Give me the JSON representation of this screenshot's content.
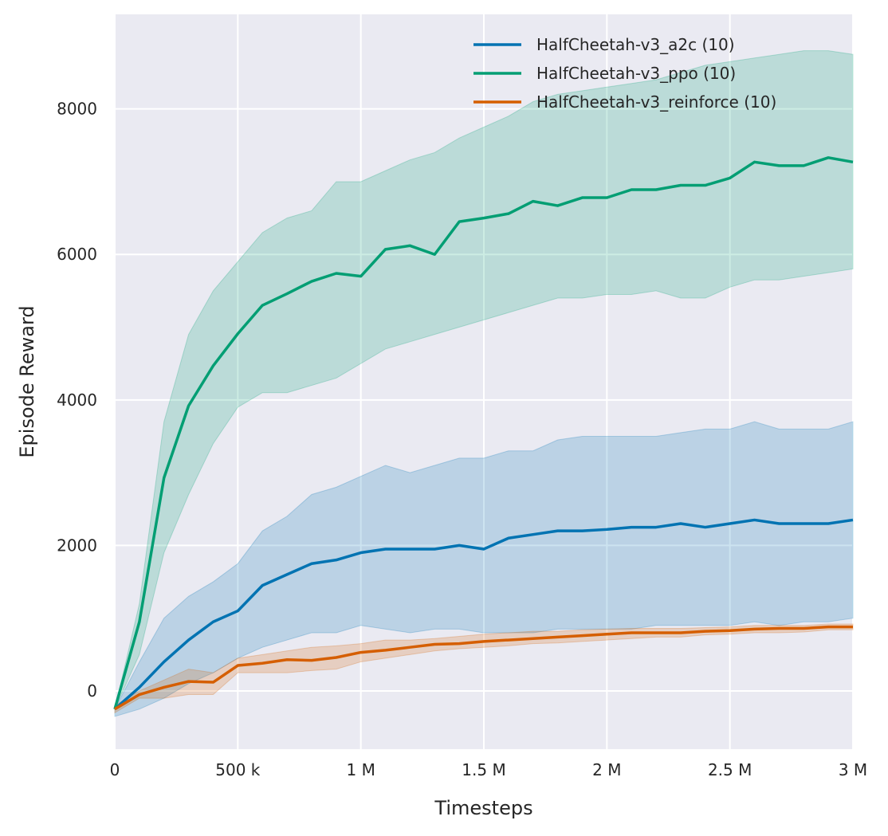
{
  "chart_data": {
    "type": "line",
    "title": "",
    "xlabel": "Timesteps",
    "ylabel": "Episode Reward",
    "xlim": [
      0,
      3000000
    ],
    "ylim": [
      -800,
      9300
    ],
    "grid": true,
    "legend_position": "top-right",
    "x_ticks": [
      {
        "value": 0,
        "label": "0"
      },
      {
        "value": 500000,
        "label": "500 k"
      },
      {
        "value": 1000000,
        "label": "1 M"
      },
      {
        "value": 1500000,
        "label": "1.5 M"
      },
      {
        "value": 2000000,
        "label": "2 M"
      },
      {
        "value": 2500000,
        "label": "2.5 M"
      },
      {
        "value": 3000000,
        "label": "3 M"
      }
    ],
    "y_ticks": [
      {
        "value": 0,
        "label": "0"
      },
      {
        "value": 2000,
        "label": "2000"
      },
      {
        "value": 4000,
        "label": "4000"
      },
      {
        "value": 6000,
        "label": "6000"
      },
      {
        "value": 8000,
        "label": "8000"
      }
    ],
    "x": [
      0,
      100000,
      200000,
      300000,
      400000,
      500000,
      600000,
      700000,
      800000,
      900000,
      1000000,
      1100000,
      1200000,
      1300000,
      1400000,
      1500000,
      1600000,
      1700000,
      1800000,
      1900000,
      2000000,
      2100000,
      2200000,
      2300000,
      2400000,
      2500000,
      2600000,
      2700000,
      2800000,
      2900000,
      3000000
    ],
    "series": [
      {
        "name": "HalfCheetah-v3_a2c (10)",
        "color": "#0173b2",
        "mean": [
          -250,
          50,
          400,
          700,
          950,
          1100,
          1450,
          1600,
          1750,
          1800,
          1900,
          1950,
          1950,
          1950,
          2000,
          1950,
          2100,
          2150,
          2200,
          2200,
          2220,
          2250,
          2250,
          2300,
          2250,
          2300,
          2350,
          2300,
          2300,
          2300,
          2350
        ],
        "upper": [
          -250,
          400,
          1000,
          1300,
          1500,
          1750,
          2200,
          2400,
          2700,
          2800,
          2950,
          3100,
          3000,
          3100,
          3200,
          3200,
          3300,
          3300,
          3450,
          3500,
          3500,
          3500,
          3500,
          3550,
          3600,
          3600,
          3700,
          3600,
          3600,
          3600,
          3700
        ],
        "lower": [
          -350,
          -250,
          -100,
          100,
          250,
          450,
          600,
          700,
          800,
          800,
          900,
          850,
          800,
          850,
          850,
          800,
          800,
          800,
          850,
          850,
          850,
          850,
          900,
          900,
          900,
          900,
          950,
          900,
          950,
          950,
          1000
        ]
      },
      {
        "name": "HalfCheetah-v3_ppo (10)",
        "color": "#029e73",
        "mean": [
          -250,
          950,
          2930,
          3920,
          4470,
          4910,
          5300,
          5460,
          5630,
          5740,
          5700,
          6070,
          6120,
          6000,
          6450,
          6500,
          6560,
          6730,
          6670,
          6780,
          6780,
          6890,
          6890,
          6950,
          6950,
          7050,
          7270,
          7220,
          7220,
          7330,
          7270
        ],
        "upper": [
          -250,
          1200,
          3700,
          4900,
          5500,
          5900,
          6300,
          6500,
          6600,
          7000,
          7000,
          7150,
          7300,
          7400,
          7600,
          7750,
          7900,
          8100,
          8200,
          8250,
          8300,
          8350,
          8400,
          8500,
          8600,
          8650,
          8700,
          8750,
          8800,
          8800,
          8750
        ],
        "lower": [
          -250,
          500,
          1900,
          2700,
          3400,
          3900,
          4100,
          4100,
          4200,
          4300,
          4500,
          4700,
          4800,
          4900,
          5000,
          5100,
          5200,
          5300,
          5400,
          5400,
          5450,
          5450,
          5500,
          5400,
          5400,
          5550,
          5650,
          5650,
          5700,
          5750,
          5800
        ]
      },
      {
        "name": "HalfCheetah-v3_reinforce (10)",
        "color": "#d55e00",
        "mean": [
          -250,
          -50,
          50,
          130,
          120,
          350,
          380,
          430,
          420,
          460,
          530,
          560,
          600,
          640,
          650,
          680,
          700,
          720,
          740,
          760,
          780,
          800,
          800,
          800,
          820,
          830,
          850,
          860,
          860,
          880,
          880
        ],
        "upper": [
          -200,
          0,
          150,
          300,
          250,
          450,
          500,
          550,
          600,
          620,
          650,
          700,
          700,
          720,
          750,
          780,
          800,
          820,
          820,
          840,
          850,
          860,
          860,
          860,
          870,
          880,
          900,
          900,
          900,
          920,
          920
        ],
        "lower": [
          -300,
          -100,
          -100,
          -50,
          -50,
          250,
          250,
          250,
          280,
          300,
          400,
          450,
          500,
          550,
          580,
          600,
          620,
          650,
          660,
          680,
          700,
          720,
          740,
          740,
          770,
          780,
          800,
          800,
          810,
          840,
          840
        ]
      }
    ]
  }
}
